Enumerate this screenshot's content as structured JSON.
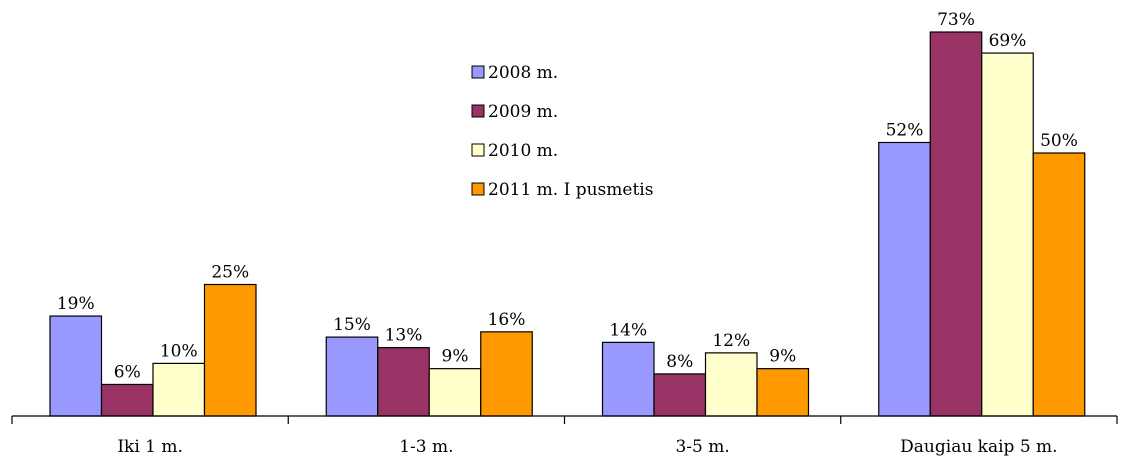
{
  "chart_data": {
    "type": "bar",
    "title": "",
    "xlabel": "",
    "ylabel": "",
    "ylim": [
      0,
      75
    ],
    "grid": false,
    "legend_position": "top-center",
    "categories": [
      "Iki 1 m.",
      "1-3 m.",
      "3-5 m.",
      "Daugiau kaip 5 m."
    ],
    "series": [
      {
        "name": "2008 m.",
        "color": "#9999ff",
        "values": [
          19,
          15,
          14,
          52
        ],
        "labels": [
          "19%",
          "15%",
          "14%",
          "52%"
        ]
      },
      {
        "name": "2009 m.",
        "color": "#993366",
        "values": [
          6,
          13,
          8,
          73
        ],
        "labels": [
          "6%",
          "13%",
          "8%",
          "73%"
        ]
      },
      {
        "name": "2010 m.",
        "color": "#ffffcc",
        "values": [
          10,
          9,
          12,
          69
        ],
        "labels": [
          "10%",
          "9%",
          "12%",
          "69%"
        ]
      },
      {
        "name": "2011 m. I pusmetis",
        "color": "#ff9900",
        "values": [
          25,
          16,
          9,
          50
        ],
        "labels": [
          "25%",
          "16%",
          "9%",
          "50%"
        ]
      }
    ]
  }
}
